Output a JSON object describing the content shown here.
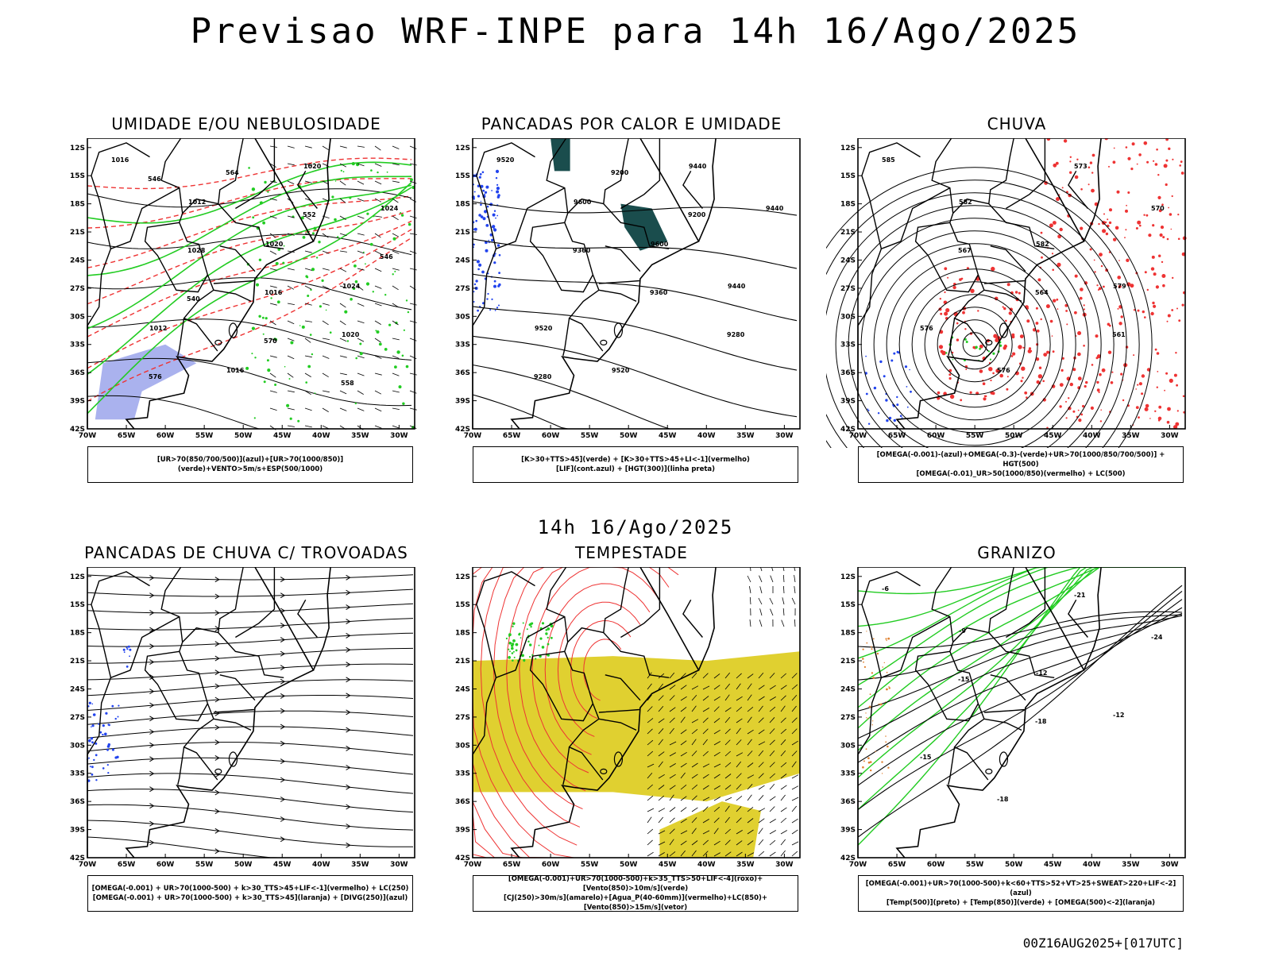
{
  "header": {
    "title": "Previsao WRF-INPE  para 14h 16/Ago/2025",
    "subtitle": "14h 16/Ago/2025",
    "footer": "00Z16AUG2025+[017UTC]"
  },
  "axes": {
    "lat_labels": [
      "12S",
      "15S",
      "18S",
      "21S",
      "24S",
      "27S",
      "30S",
      "33S",
      "36S",
      "39S",
      "42S"
    ],
    "lon_labels": [
      "70W",
      "65W",
      "60W",
      "55W",
      "50W",
      "45W",
      "40W",
      "35W",
      "30W"
    ]
  },
  "colors": {
    "humidity_blue": "#aab2ee",
    "moisture_green": "#22cc22",
    "red_contour": "#ee3333",
    "dark_teal": "#1a4d4d",
    "yellow": "#e0d030",
    "blue_dots": "#2244ee",
    "rain_red": "#ee3333"
  },
  "panels": [
    {
      "title": "UMIDADE E/OU NEBULOSIDADE",
      "legend": [
        "[UR>70(850/700/500)](azul)+[UR>70(1000/850)](verde)+VENTO>5m/s+ESP(500/1000)"
      ],
      "contour_labels": [
        "1016",
        "1012",
        "1020",
        "1024",
        "1012",
        "1016",
        "1020",
        "1024",
        "1028",
        "1016",
        "1020",
        "576",
        "564",
        "552",
        "546",
        "540",
        "570",
        "558",
        "546"
      ]
    },
    {
      "title": "PANCADAS POR CALOR E UMIDADE",
      "legend": [
        "[K>30+TTS>45](verde) + [K>30+TTS>45+LI<-1](vermelho)",
        "[LIF](cont.azul) + [HGT(300)](linha preta)"
      ],
      "contour_labels": [
        "9520",
        "9600",
        "9600",
        "9440",
        "9520",
        "9520",
        "9440",
        "9440",
        "9360",
        "9360",
        "9280",
        "9280",
        "9200",
        "9200"
      ]
    },
    {
      "title": "CHUVA",
      "legend": [
        "[OMEGA(-0.001)-(azul)+OMEGA(-0.3)-(verde)+UR>70(1000/850/700/500)] + HGT(500)",
        "[OMEGA(-0.01)_UR>50(1000/850)(vermelho) + LC(500)"
      ],
      "contour_labels": [
        "585",
        "582",
        "582",
        "579",
        "576",
        "576",
        "573",
        "570",
        "567",
        "564",
        "561"
      ]
    },
    {
      "title": "PANCADAS DE CHUVA C/ TROVOADAS",
      "legend": [
        "[OMEGA(-0.001) + UR>70(1000-500) + k>30_TTS>45+LIF<-1](vermelho) + LC(250)",
        "[OMEGA(-0.001) + UR>70(1000-500) + k>30_TTS>45](laranja) + [DIVG(250)](azul)"
      ],
      "contour_labels": []
    },
    {
      "title": "TEMPESTADE",
      "legend": [
        "[OMEGA(-0.001)+UR>70(1000-500)+k>35_TTS>50+LIF<-4](roxo)+[Vento(850)>10m/s](verde)",
        "[CJ(250)>30m/s](amarelo)+[Agua_P(40-60mm)](vermelho)+LC(850)+[Vento(850)>15m/s](vetor)"
      ],
      "contour_labels": []
    },
    {
      "title": "GRANIZO",
      "legend": [
        "[OMEGA(-0.001)+UR>70(1000-500)+k<60+TTS>52+VT>25+SWEAT>220+LIF<-2](azul)",
        "[Temp(500)](preto) + [Temp(850)](verde) + [OMEGA(500)<-2](laranja)"
      ],
      "contour_labels": [
        "-6",
        "-9",
        "-12",
        "-12",
        "-15",
        "-18",
        "-21",
        "-24",
        "-15",
        "-18"
      ]
    }
  ]
}
